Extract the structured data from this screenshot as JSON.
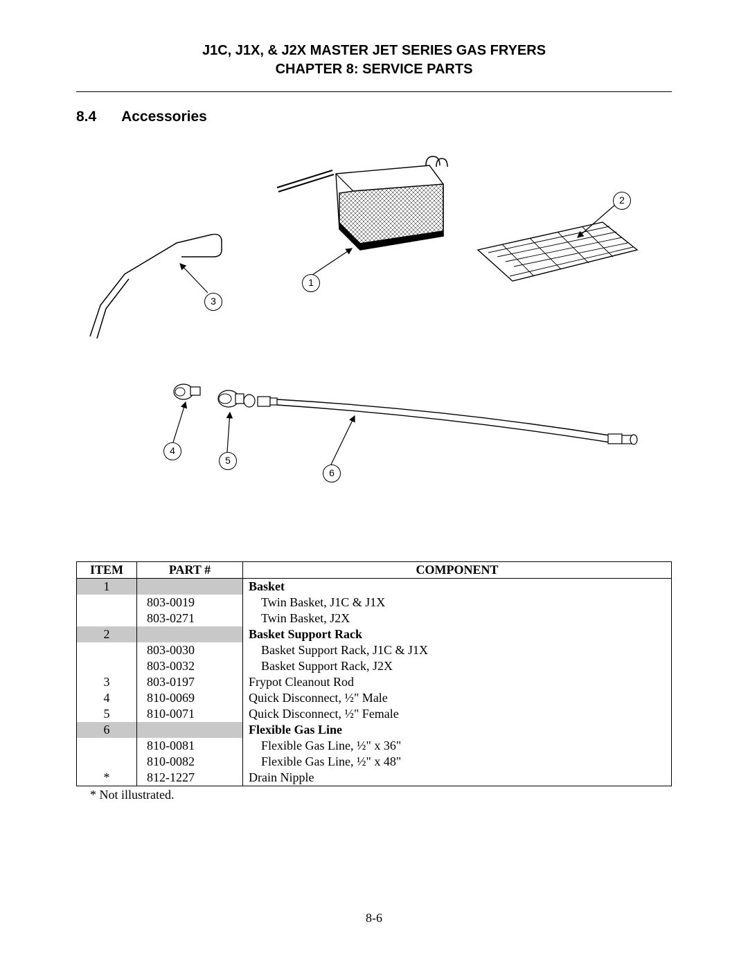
{
  "header": {
    "line1": "J1C, J1X, & J2X MASTER JET SERIES GAS FRYERS",
    "line2": "CHAPTER 8:  SERVICE PARTS"
  },
  "section": {
    "number": "8.4",
    "title": "Accessories"
  },
  "callouts": {
    "c1": "1",
    "c2": "2",
    "c3": "3",
    "c4": "4",
    "c5": "5",
    "c6": "6"
  },
  "table": {
    "headers": {
      "item": "ITEM",
      "part": "PART #",
      "component": "COMPONENT"
    },
    "rows": [
      {
        "item": "1",
        "item_shade": true,
        "part": "",
        "part_shade": true,
        "comp": "Basket",
        "bold": true,
        "indent": false
      },
      {
        "item": "",
        "item_shade": false,
        "part": "803-0019",
        "part_shade": false,
        "comp": "Twin Basket, J1C & J1X",
        "bold": false,
        "indent": true
      },
      {
        "item": "",
        "item_shade": false,
        "part": "803-0271",
        "part_shade": false,
        "comp": "Twin Basket, J2X",
        "bold": false,
        "indent": true
      },
      {
        "item": "2",
        "item_shade": true,
        "part": "",
        "part_shade": true,
        "comp": "Basket Support Rack",
        "bold": true,
        "indent": false
      },
      {
        "item": "",
        "item_shade": false,
        "part": "803-0030",
        "part_shade": false,
        "comp": "Basket Support Rack, J1C & J1X",
        "bold": false,
        "indent": true
      },
      {
        "item": "",
        "item_shade": false,
        "part": "803-0032",
        "part_shade": false,
        "comp": "Basket Support Rack, J2X",
        "bold": false,
        "indent": true
      },
      {
        "item": "3",
        "item_shade": false,
        "part": "803-0197",
        "part_shade": false,
        "comp": "Frypot Cleanout Rod",
        "bold": false,
        "indent": false
      },
      {
        "item": "4",
        "item_shade": false,
        "part": "810-0069",
        "part_shade": false,
        "comp": "Quick Disconnect, ½\" Male",
        "bold": false,
        "indent": false
      },
      {
        "item": "5",
        "item_shade": false,
        "part": "810-0071",
        "part_shade": false,
        "comp": "Quick Disconnect, ½\" Female",
        "bold": false,
        "indent": false
      },
      {
        "item": "6",
        "item_shade": true,
        "part": "",
        "part_shade": true,
        "comp": "Flexible Gas Line",
        "bold": true,
        "indent": false
      },
      {
        "item": "",
        "item_shade": false,
        "part": "810-0081",
        "part_shade": false,
        "comp": "Flexible Gas Line, ½\" x 36\"",
        "bold": false,
        "indent": true
      },
      {
        "item": "",
        "item_shade": false,
        "part": "810-0082",
        "part_shade": false,
        "comp": "Flexible Gas Line, ½\" x 48\"",
        "bold": false,
        "indent": true
      },
      {
        "item": "*",
        "item_shade": false,
        "part": "812-1227",
        "part_shade": false,
        "comp": "Drain Nipple",
        "bold": false,
        "indent": false
      }
    ]
  },
  "footnote": "* Not illustrated.",
  "page_number": "8-6",
  "colors": {
    "shade": "#c8c8c8",
    "ink": "#000000",
    "bg": "#ffffff"
  }
}
